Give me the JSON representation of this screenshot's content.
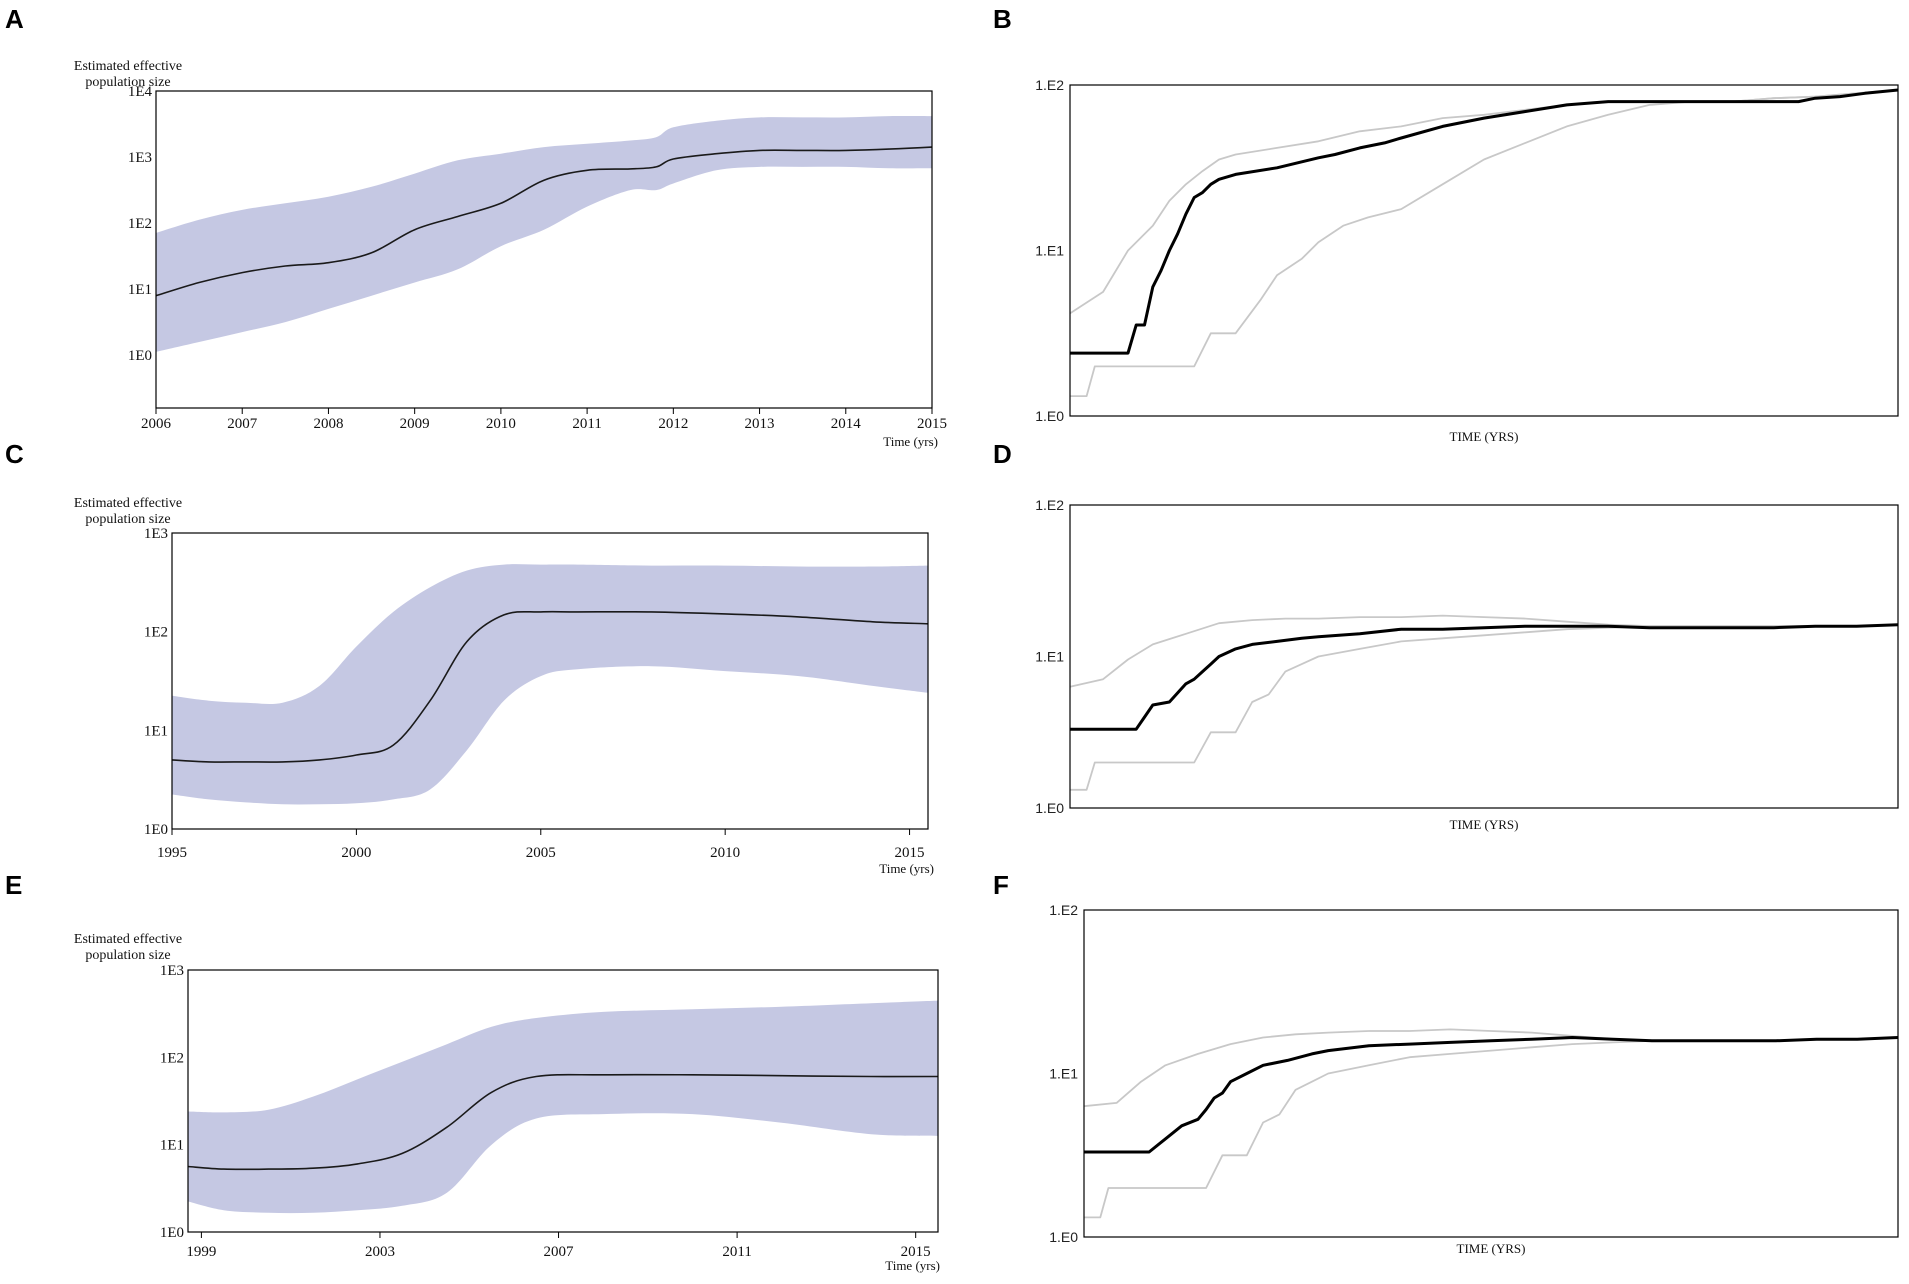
{
  "colors": {
    "band": "#c5c8e3",
    "median": "#1a1a1a",
    "ci": "#c8c8c8",
    "skyline": "#000000",
    "frame": "#000000"
  },
  "chart_data": [
    {
      "panel": "A",
      "type": "area",
      "ylabel": [
        "Estimated effective",
        "population size"
      ],
      "xlabel": "Time (yrs)",
      "ytick_labels": [
        "1E0",
        "1E1",
        "1E2",
        "1E3",
        "1E4"
      ],
      "yscale": "log10",
      "ylim": [
        -0.8,
        4.0
      ],
      "xlim": [
        2006,
        2015
      ],
      "xtick_labels": [
        "2006",
        "2007",
        "2008",
        "2009",
        "2010",
        "2011",
        "2012",
        "2013",
        "2014",
        "2015"
      ],
      "xtick_values": [
        2006,
        2007,
        2008,
        2009,
        2010,
        2011,
        2012,
        2013,
        2014,
        2015
      ],
      "x": [
        2006,
        2006.5,
        2007,
        2007.5,
        2008,
        2008.5,
        2009,
        2009.5,
        2010,
        2010.5,
        2011,
        2011.5,
        2011.8,
        2012,
        2012.5,
        2013,
        2013.5,
        2014,
        2014.5,
        2015
      ],
      "median": [
        0.9,
        1.1,
        1.25,
        1.35,
        1.4,
        1.55,
        1.9,
        2.1,
        2.3,
        2.65,
        2.8,
        2.82,
        2.85,
        2.97,
        3.05,
        3.1,
        3.1,
        3.1,
        3.12,
        3.15
      ],
      "lower": [
        0.05,
        0.2,
        0.35,
        0.5,
        0.7,
        0.9,
        1.1,
        1.3,
        1.65,
        1.9,
        2.25,
        2.5,
        2.5,
        2.6,
        2.8,
        2.85,
        2.85,
        2.85,
        2.83,
        2.83
      ],
      "upper": [
        1.85,
        2.05,
        2.2,
        2.3,
        2.4,
        2.55,
        2.75,
        2.95,
        3.05,
        3.15,
        3.2,
        3.25,
        3.3,
        3.45,
        3.55,
        3.6,
        3.6,
        3.6,
        3.62,
        3.62
      ]
    },
    {
      "panel": "B",
      "type": "line",
      "xlabel": "TIME (YRS)",
      "ytick_labels": [
        "1.E0",
        "1.E1",
        "1.E2"
      ],
      "yscale": "log10",
      "ylim": [
        0,
        2
      ],
      "xlim": [
        0,
        100
      ],
      "series": [
        {
          "name": "median",
          "x": [
            0,
            6,
            7,
            8,
            9,
            10,
            11,
            12,
            13,
            14,
            15,
            16,
            17,
            18,
            20,
            25,
            30,
            32,
            35,
            38,
            40,
            45,
            50,
            55,
            60,
            65,
            70,
            72,
            75,
            78,
            80,
            84,
            88,
            90,
            93,
            96,
            100
          ],
          "y": [
            0.38,
            0.38,
            0.38,
            0.55,
            0.55,
            0.78,
            0.88,
            1.0,
            1.1,
            1.22,
            1.32,
            1.35,
            1.4,
            1.43,
            1.46,
            1.5,
            1.56,
            1.58,
            1.62,
            1.65,
            1.68,
            1.75,
            1.8,
            1.84,
            1.88,
            1.9,
            1.9,
            1.9,
            1.9,
            1.9,
            1.9,
            1.9,
            1.9,
            1.92,
            1.93,
            1.95,
            1.97
          ]
        },
        {
          "name": "upper",
          "x": [
            0,
            4,
            7,
            10,
            12,
            14,
            16,
            18,
            20,
            25,
            30,
            35,
            40,
            45,
            50,
            55,
            60,
            65,
            70,
            75,
            80,
            85,
            90,
            95,
            100
          ],
          "y": [
            0.62,
            0.75,
            1.0,
            1.15,
            1.3,
            1.4,
            1.48,
            1.55,
            1.58,
            1.62,
            1.66,
            1.72,
            1.75,
            1.8,
            1.82,
            1.85,
            1.88,
            1.9,
            1.9,
            1.9,
            1.9,
            1.92,
            1.93,
            1.95,
            1.97
          ]
        },
        {
          "name": "lower",
          "x": [
            0,
            2,
            3,
            6,
            9,
            12,
            15,
            17,
            20,
            23,
            25,
            28,
            30,
            33,
            36,
            40,
            45,
            50,
            55,
            60,
            65,
            70,
            75,
            80,
            85,
            90,
            95,
            100
          ],
          "y": [
            0.12,
            0.12,
            0.3,
            0.3,
            0.3,
            0.3,
            0.3,
            0.5,
            0.5,
            0.7,
            0.85,
            0.95,
            1.05,
            1.15,
            1.2,
            1.25,
            1.4,
            1.55,
            1.65,
            1.75,
            1.82,
            1.88,
            1.9,
            1.9,
            1.92,
            1.93,
            1.95,
            1.97
          ]
        }
      ]
    },
    {
      "panel": "C",
      "type": "area",
      "ylabel": [
        "Estimated effective",
        "population size"
      ],
      "xlabel": "Time (yrs)",
      "ytick_labels": [
        "1E0",
        "1E1",
        "1E2",
        "1E3"
      ],
      "yscale": "log10",
      "ylim": [
        0,
        3
      ],
      "xlim": [
        1995,
        2015.5
      ],
      "xtick_labels": [
        "1995",
        "2000",
        "2005",
        "2010",
        "2015"
      ],
      "xtick_values": [
        1995,
        2000,
        2005,
        2010,
        2015
      ],
      "x": [
        1995,
        1996,
        1997,
        1998,
        1999,
        2000,
        2001,
        2002,
        2003,
        2004,
        2005,
        2006,
        2008,
        2010,
        2012,
        2014,
        2015.5
      ],
      "median": [
        0.7,
        0.68,
        0.68,
        0.68,
        0.7,
        0.75,
        0.85,
        1.3,
        1.9,
        2.17,
        2.2,
        2.2,
        2.2,
        2.18,
        2.15,
        2.1,
        2.08
      ],
      "lower": [
        0.35,
        0.3,
        0.27,
        0.25,
        0.25,
        0.26,
        0.3,
        0.4,
        0.8,
        1.3,
        1.55,
        1.62,
        1.65,
        1.6,
        1.55,
        1.45,
        1.38
      ],
      "upper": [
        1.35,
        1.3,
        1.28,
        1.28,
        1.45,
        1.85,
        2.2,
        2.45,
        2.62,
        2.68,
        2.68,
        2.68,
        2.67,
        2.67,
        2.66,
        2.66,
        2.67
      ]
    },
    {
      "panel": "D",
      "type": "line",
      "xlabel": "TIME (YRS)",
      "ytick_labels": [
        "1.E0",
        "1.E1",
        "1.E2"
      ],
      "yscale": "log10",
      "ylim": [
        0,
        2
      ],
      "xlim": [
        0,
        100
      ],
      "series": [
        {
          "name": "median",
          "x": [
            0,
            6,
            8,
            10,
            12,
            14,
            15,
            16,
            17,
            18,
            20,
            22,
            25,
            28,
            30,
            35,
            40,
            45,
            50,
            55,
            60,
            65,
            70,
            75,
            80,
            85,
            90,
            95,
            100
          ],
          "y": [
            0.52,
            0.52,
            0.52,
            0.68,
            0.7,
            0.82,
            0.85,
            0.9,
            0.95,
            1.0,
            1.05,
            1.08,
            1.1,
            1.12,
            1.13,
            1.15,
            1.18,
            1.18,
            1.19,
            1.2,
            1.2,
            1.2,
            1.19,
            1.19,
            1.19,
            1.19,
            1.2,
            1.2,
            1.21
          ]
        },
        {
          "name": "upper",
          "x": [
            0,
            4,
            7,
            10,
            14,
            18,
            22,
            26,
            30,
            35,
            40,
            45,
            50,
            55,
            60,
            65,
            70,
            75,
            80,
            85,
            90,
            95,
            100
          ],
          "y": [
            0.8,
            0.85,
            0.98,
            1.08,
            1.15,
            1.22,
            1.24,
            1.25,
            1.25,
            1.26,
            1.26,
            1.27,
            1.26,
            1.25,
            1.23,
            1.21,
            1.2,
            1.2,
            1.2,
            1.2,
            1.2,
            1.2,
            1.21
          ]
        },
        {
          "name": "lower",
          "x": [
            0,
            2,
            3,
            6,
            9,
            12,
            15,
            17,
            20,
            22,
            24,
            26,
            28,
            30,
            35,
            40,
            45,
            50,
            55,
            60,
            65,
            70,
            75,
            80,
            85,
            90,
            95,
            100
          ],
          "y": [
            0.12,
            0.12,
            0.3,
            0.3,
            0.3,
            0.3,
            0.3,
            0.5,
            0.5,
            0.7,
            0.75,
            0.9,
            0.95,
            1.0,
            1.05,
            1.1,
            1.12,
            1.14,
            1.16,
            1.18,
            1.19,
            1.2,
            1.2,
            1.2,
            1.2,
            1.2,
            1.2,
            1.21
          ]
        }
      ]
    },
    {
      "panel": "E",
      "type": "area",
      "ylabel": [
        "Estimated effective",
        "population size"
      ],
      "xlabel": "Time (yrs)",
      "ytick_labels": [
        "1E0",
        "1E1",
        "1E2",
        "1E3"
      ],
      "yscale": "log10",
      "ylim": [
        0,
        3
      ],
      "xlim": [
        1998.7,
        2015.5
      ],
      "xtick_labels": [
        "1999",
        "2003",
        "2007",
        "2011",
        "2015"
      ],
      "xtick_values": [
        1999,
        2003,
        2007,
        2011,
        2015
      ],
      "x": [
        1998.7,
        1999.5,
        2000.5,
        2001.5,
        2002.5,
        2003.5,
        2004.5,
        2005.5,
        2006.5,
        2008,
        2010,
        2012,
        2014,
        2015.5
      ],
      "median": [
        0.75,
        0.72,
        0.72,
        0.73,
        0.78,
        0.9,
        1.2,
        1.6,
        1.78,
        1.8,
        1.8,
        1.79,
        1.78,
        1.78
      ],
      "lower": [
        0.35,
        0.25,
        0.22,
        0.22,
        0.25,
        0.3,
        0.45,
        1.0,
        1.3,
        1.35,
        1.35,
        1.25,
        1.12,
        1.1
      ],
      "upper": [
        1.38,
        1.37,
        1.4,
        1.55,
        1.75,
        1.95,
        2.15,
        2.35,
        2.45,
        2.52,
        2.55,
        2.58,
        2.62,
        2.65
      ]
    },
    {
      "panel": "F",
      "type": "line",
      "xlabel": "TIME (YRS)",
      "ytick_labels": [
        "1.E0",
        "1.E1",
        "1.E2"
      ],
      "yscale": "log10",
      "ylim": [
        0,
        2
      ],
      "xlim": [
        0,
        100
      ],
      "series": [
        {
          "name": "median",
          "x": [
            0,
            6,
            8,
            10,
            12,
            14,
            15,
            16,
            17,
            18,
            20,
            22,
            25,
            28,
            30,
            35,
            40,
            45,
            50,
            55,
            60,
            65,
            70,
            75,
            80,
            85,
            90,
            95,
            100
          ],
          "y": [
            0.52,
            0.52,
            0.52,
            0.6,
            0.68,
            0.72,
            0.78,
            0.85,
            0.88,
            0.95,
            1.0,
            1.05,
            1.08,
            1.12,
            1.14,
            1.17,
            1.18,
            1.19,
            1.2,
            1.21,
            1.22,
            1.21,
            1.2,
            1.2,
            1.2,
            1.2,
            1.21,
            1.21,
            1.22
          ]
        },
        {
          "name": "upper",
          "x": [
            0,
            4,
            7,
            10,
            14,
            18,
            22,
            26,
            30,
            35,
            40,
            45,
            50,
            55,
            60,
            65,
            70,
            75,
            80,
            85,
            90,
            95,
            100
          ],
          "y": [
            0.8,
            0.82,
            0.95,
            1.05,
            1.12,
            1.18,
            1.22,
            1.24,
            1.25,
            1.26,
            1.26,
            1.27,
            1.26,
            1.25,
            1.23,
            1.21,
            1.2,
            1.2,
            1.2,
            1.2,
            1.21,
            1.21,
            1.22
          ]
        },
        {
          "name": "lower",
          "x": [
            0,
            2,
            3,
            6,
            9,
            12,
            15,
            17,
            20,
            22,
            24,
            26,
            28,
            30,
            35,
            40,
            45,
            50,
            55,
            60,
            65,
            70,
            75,
            80,
            85,
            90,
            95,
            100
          ],
          "y": [
            0.12,
            0.12,
            0.3,
            0.3,
            0.3,
            0.3,
            0.3,
            0.5,
            0.5,
            0.7,
            0.75,
            0.9,
            0.95,
            1.0,
            1.05,
            1.1,
            1.12,
            1.14,
            1.16,
            1.18,
            1.19,
            1.2,
            1.2,
            1.2,
            1.2,
            1.21,
            1.21,
            1.22
          ]
        }
      ]
    }
  ]
}
